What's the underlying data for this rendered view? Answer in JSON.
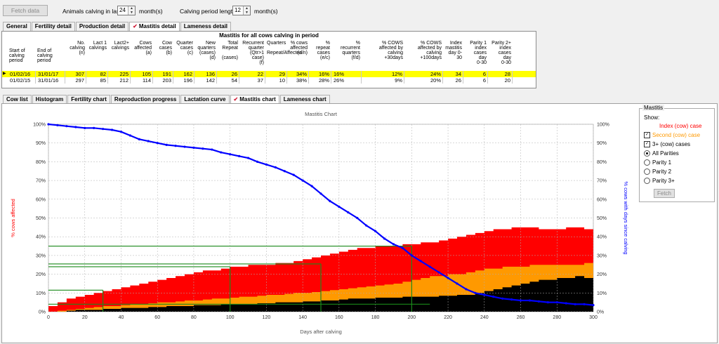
{
  "toolbar": {
    "fetch_data_label": "Fetch data",
    "animals_calving_label": "Animals calving in last",
    "animals_calving_value": "24",
    "animals_calving_unit": "month(s)",
    "calving_period_label": "Calving period length",
    "calving_period_value": "12",
    "calving_period_unit": "month(s)"
  },
  "top_tabs": [
    {
      "label": "General",
      "active": false
    },
    {
      "label": "Fertility detail",
      "active": false
    },
    {
      "label": "Production detail",
      "active": false
    },
    {
      "label": "Mastitis detail",
      "active": true
    },
    {
      "label": "Lameness detail",
      "active": false
    }
  ],
  "table": {
    "title": "Mastitis for all cows calving in period",
    "headers": [
      "Start of calving period",
      "End of calving period",
      "No. calving (n)",
      "Lact 1 calvings",
      "Lact2+ calvings",
      "Cows affected (a)",
      "Cow cases (b)",
      "Quarter cases (c)",
      "New quarters (cases) (d)",
      "Total Repeat (cases)",
      "Recurrent quarter (Qtr>1 case) (f)",
      "Quarters Repeat/Affected",
      "% cows affected (a/n)",
      "% repeat cases (e/c)",
      "% recurrent quarters (f/d)",
      "% COWS affected by calving +30days",
      "% COWS affected by calving +100days",
      "Index mastitis day 0-30",
      "Parity 1 index cases day 0-30",
      "Parity 2+ index cases day 0-30"
    ],
    "header_display": [
      "Start of\ncalving\nperiod",
      "End of\ncalving\nperiod",
      "No.\ncalving\n(n)",
      "Lact 1\ncalvings",
      "Lact2+\ncalvings",
      "Cows\naffected\n(a)",
      "Cow\ncases\n(b)",
      "Quarter\ncases\n(c)",
      "New\nquarters\n(cases)\n(d)",
      "Total\nRepeat\n\n(cases)",
      "Recurrent\nquarter\n(Qtr>1 case)\n(f)",
      "Quarters\n\nRepeat/Affected",
      "% cows\naffected\n(a/n)",
      "% repeat\ncases\n(e/c)",
      "%\nrecurrent\nquarters\n(f/d)",
      "% COWS\naffected by\ncalving\n+30days",
      "% COWS\naffected by\ncalving\n+100days",
      "Index\nmastitis\nday 0-30",
      "Parity 1\nindex\ncases day\n0-30",
      "Parity 2+\nindex\ncases day\n0-30"
    ],
    "rows": [
      [
        "01/02/16",
        "31/01/17",
        "307",
        "82",
        "225",
        "105",
        "191",
        "162",
        "136",
        "26",
        "22",
        "29",
        "34%",
        "16%",
        "16%",
        "12%",
        "24%",
        "34",
        "6",
        "28"
      ],
      [
        "01/02/15",
        "31/01/16",
        "297",
        "85",
        "212",
        "114",
        "203",
        "196",
        "142",
        "54",
        "37",
        "10",
        "38%",
        "28%",
        "26%",
        "9%",
        "20%",
        "26",
        "6",
        "20"
      ]
    ]
  },
  "bottom_tabs": [
    {
      "label": "Cow list",
      "active": false
    },
    {
      "label": "Histogram",
      "active": false
    },
    {
      "label": "Fertility chart",
      "active": false
    },
    {
      "label": "Reproduction progress",
      "active": false
    },
    {
      "label": "Lactation curve",
      "active": false
    },
    {
      "label": "Mastitis chart",
      "active": true
    },
    {
      "label": "Lameness chart",
      "active": false
    }
  ],
  "legend": {
    "group_title": "Mastitis",
    "show_label": "Show:",
    "items": [
      {
        "label": "Index (cow) case",
        "type": "text",
        "color": "#ff0000"
      },
      {
        "label": "Second (cow) case",
        "type": "checkbox",
        "checked": true,
        "color": "#ff9900"
      },
      {
        "label": "3+ (cow) cases",
        "type": "checkbox",
        "checked": true,
        "color": "#000000"
      },
      {
        "label": "All Parities",
        "type": "radio",
        "checked": true
      },
      {
        "label": "Parity 1",
        "type": "radio",
        "checked": false
      },
      {
        "label": "Parity 2",
        "type": "radio",
        "checked": false
      },
      {
        "label": "Parity 3+",
        "type": "radio",
        "checked": false
      }
    ],
    "fetch_label": "Fetch"
  },
  "chart_data": {
    "type": "area",
    "title": "Mastitis Chart",
    "xlabel": "Days after calving",
    "ylabel_left": "% cows affected",
    "ylabel_right": "% cows with days since calving",
    "xlim": [
      0,
      300
    ],
    "ylim": [
      0,
      100
    ],
    "x_ticks": [
      0,
      20,
      40,
      60,
      80,
      100,
      120,
      140,
      160,
      180,
      200,
      220,
      240,
      260,
      280,
      300
    ],
    "y_ticks": [
      "0%",
      "10%",
      "20%",
      "30%",
      "40%",
      "50%",
      "60%",
      "70%",
      "80%",
      "90%",
      "100%"
    ],
    "grid": true,
    "x": [
      0,
      5,
      10,
      15,
      20,
      25,
      30,
      35,
      40,
      45,
      50,
      55,
      60,
      65,
      70,
      75,
      80,
      85,
      90,
      95,
      100,
      105,
      110,
      115,
      120,
      125,
      130,
      135,
      140,
      145,
      150,
      155,
      160,
      165,
      170,
      175,
      180,
      185,
      190,
      195,
      200,
      205,
      210,
      215,
      220,
      225,
      230,
      235,
      240,
      245,
      250,
      255,
      260,
      265,
      270,
      275,
      280,
      285,
      290,
      295,
      300
    ],
    "series": [
      {
        "name": "Index (cow) case",
        "color": "#ff0000",
        "values": [
          3,
          5,
          7,
          8,
          9,
          10,
          11,
          12,
          13,
          14,
          15,
          16,
          17,
          18,
          19,
          20,
          21,
          22,
          22,
          23,
          24,
          24,
          25,
          25,
          25,
          26,
          26,
          27,
          28,
          29,
          30,
          31,
          32,
          33,
          34,
          34,
          35,
          35,
          35,
          36,
          36,
          37,
          37,
          38,
          39,
          40,
          41,
          42,
          43,
          44,
          44,
          45,
          45,
          45,
          44,
          44,
          44,
          45,
          45,
          44,
          45
        ]
      },
      {
        "name": "Second (cow) case",
        "color": "#ff9900",
        "values": [
          0,
          0.5,
          1,
          1.5,
          2,
          2.5,
          3,
          3,
          3.5,
          4,
          4,
          4.5,
          5,
          5,
          5.5,
          6,
          6,
          6.5,
          7,
          7,
          7.5,
          8,
          8,
          8.5,
          9,
          9,
          9.5,
          10,
          10,
          10.5,
          11,
          11.5,
          12,
          12.5,
          13,
          13.5,
          14,
          14.5,
          15,
          16,
          17,
          18,
          19,
          19,
          20,
          20,
          21,
          22,
          23,
          23,
          24,
          24,
          24,
          25,
          25,
          25,
          25,
          25,
          25,
          26,
          25
        ]
      },
      {
        "name": "3+ (cow) cases",
        "color": "#000000",
        "values": [
          0,
          0,
          0.5,
          1,
          1,
          1,
          1.5,
          1.5,
          2,
          2,
          2,
          2.5,
          2.5,
          3,
          3,
          3,
          3.5,
          3.5,
          3.5,
          4,
          4,
          4,
          4,
          4.5,
          4.5,
          5,
          5,
          5,
          5.5,
          5.5,
          6,
          6,
          6.5,
          7,
          7,
          7,
          7.5,
          7.5,
          7.5,
          8,
          8,
          8,
          8,
          8.5,
          8.5,
          9,
          9,
          10,
          11,
          12,
          13,
          14,
          15,
          16,
          17,
          17,
          18,
          18,
          19,
          18,
          19
        ]
      },
      {
        "name": "% cows with days since calving",
        "color": "#0000ff",
        "values": [
          100,
          99.5,
          99,
          98.5,
          98,
          98,
          97.5,
          97,
          96,
          94,
          92,
          91,
          90,
          89,
          88.5,
          88,
          87.5,
          87,
          86.5,
          85,
          84,
          83,
          82,
          80,
          78.5,
          77,
          75,
          73,
          70,
          67,
          63,
          59,
          56,
          53,
          50,
          46,
          43,
          39,
          36,
          34,
          30,
          27,
          24,
          21,
          18,
          15,
          12,
          10,
          9,
          8,
          7,
          6.5,
          6,
          6,
          5.5,
          5,
          5,
          4.5,
          4,
          4,
          3.5
        ]
      }
    ],
    "reference_lines": [
      {
        "x": 30,
        "y": 11.5
      },
      {
        "x": 100,
        "y": 24
      },
      {
        "x": 150,
        "y": 25.5
      },
      {
        "x": 200,
        "y": 35
      },
      {
        "x": 0,
        "y": 4
      }
    ]
  }
}
